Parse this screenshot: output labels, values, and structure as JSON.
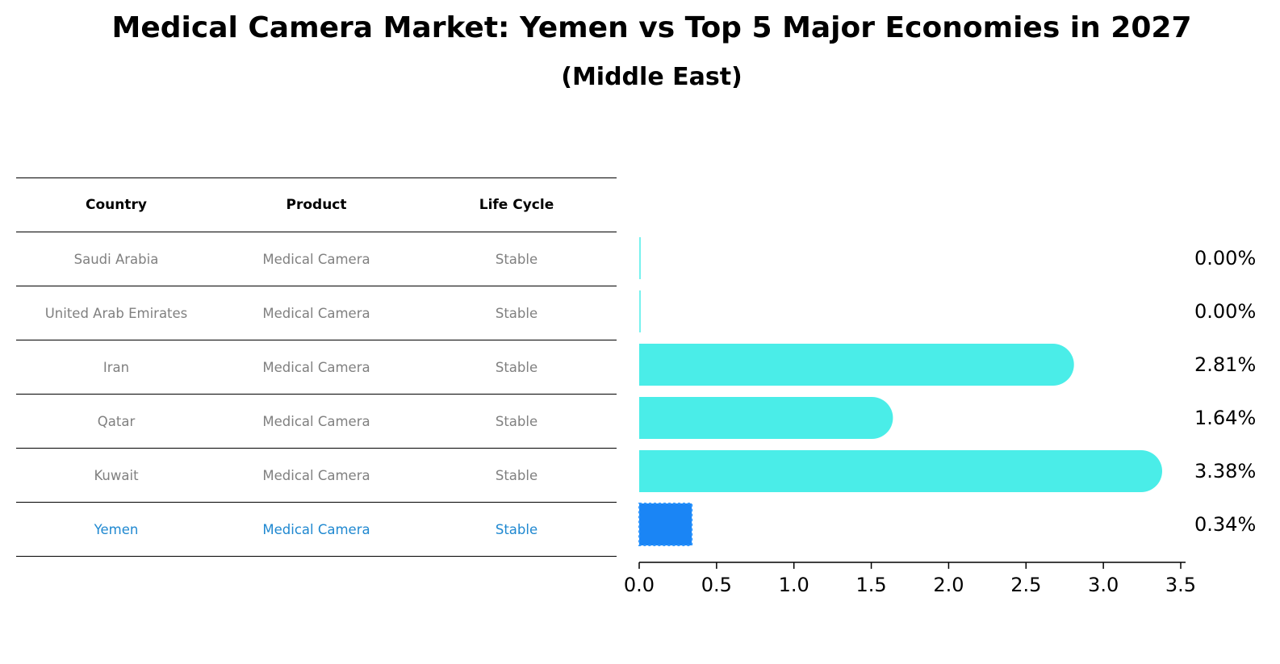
{
  "title": "Medical Camera Market: Yemen vs Top 5 Major Economies in 2027",
  "subtitle": "(Middle East)",
  "table": {
    "headers": [
      "Country",
      "Product",
      "Life Cycle"
    ],
    "rows": [
      {
        "country": "Saudi Arabia",
        "product": "Medical Camera",
        "life_cycle": "Stable"
      },
      {
        "country": "United Arab Emirates",
        "product": "Medical Camera",
        "life_cycle": "Stable"
      },
      {
        "country": "Iran",
        "product": "Medical Camera",
        "life_cycle": "Stable"
      },
      {
        "country": "Qatar",
        "product": "Medical Camera",
        "life_cycle": "Stable"
      },
      {
        "country": "Kuwait",
        "product": "Medical Camera",
        "life_cycle": "Stable"
      },
      {
        "country": "Yemen",
        "product": "Medical Camera",
        "life_cycle": "Stable"
      }
    ]
  },
  "colors": {
    "bar": "#4aede8",
    "highlight_bar": "#1a85f5",
    "highlight_text": "#1f88d0",
    "muted_text": "#808080"
  },
  "chart_data": {
    "type": "bar",
    "orientation": "horizontal",
    "title": "Medical Camera Market: Yemen vs Top 5 Major Economies in 2027",
    "subtitle": "(Middle East)",
    "categories": [
      "Saudi Arabia",
      "United Arab Emirates",
      "Iran",
      "Qatar",
      "Kuwait",
      "Yemen"
    ],
    "values": [
      0.0,
      0.0,
      2.81,
      1.64,
      3.38,
      0.34
    ],
    "value_labels": [
      "0.00%",
      "0.00%",
      "2.81%",
      "1.64%",
      "3.38%",
      "0.34%"
    ],
    "highlight": "Yemen",
    "xlim": [
      0,
      3.5
    ],
    "xticks": [
      "0.0",
      "0.5",
      "1.0",
      "1.5",
      "2.0",
      "2.5",
      "3.0",
      "3.5"
    ],
    "xlabel": "",
    "ylabel": "",
    "grid": false
  }
}
